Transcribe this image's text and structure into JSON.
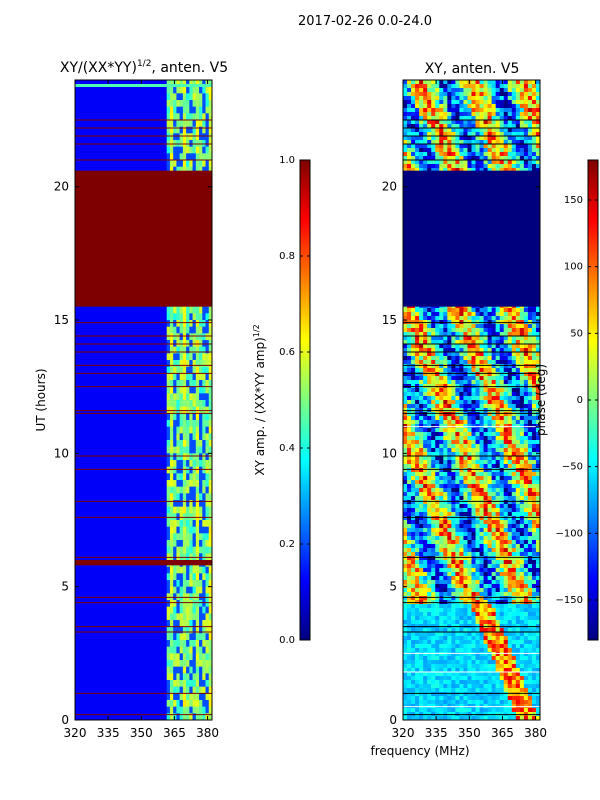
{
  "suptitle": "2017-02-26 0.0-24.0",
  "colors": {
    "jet": [
      "#00007f",
      "#0000ff",
      "#007fff",
      "#00ffff",
      "#7fff7f",
      "#ffff00",
      "#ff7f00",
      "#ff0000",
      "#7f0000"
    ],
    "black": "#000000",
    "white": "#ffffff"
  },
  "chart_data": [
    {
      "type": "heatmap",
      "title": "XY/(XX*YY)^{1/2}, anten. V5",
      "title_parts": [
        "XY/(XX*YY)",
        "1/2",
        ", anten. V5"
      ],
      "xlabel": "",
      "ylabel": "UT (hours)",
      "xlim": [
        320,
        382
      ],
      "ylim": [
        0,
        24
      ],
      "xticks": [
        "320",
        "335",
        "350",
        "365",
        "380"
      ],
      "xtick_values": [
        320,
        335,
        350,
        365,
        380
      ],
      "yticks": [
        "0",
        "5",
        "10",
        "15",
        "20"
      ],
      "ytick_values": [
        0,
        5,
        10,
        15,
        20
      ],
      "flagged_bands_hours": [
        [
          15.5,
          20.6
        ],
        [
          5.8,
          6.0
        ]
      ],
      "flagged_lines_hours": [
        0.2,
        1.0,
        3.3,
        3.5,
        4.4,
        4.6,
        6.1,
        7.6,
        8.2,
        9.4,
        9.9,
        11.5,
        11.6,
        12.5,
        13.0,
        13.3,
        13.8,
        14.1,
        14.4,
        14.9,
        21.0,
        21.6,
        21.9,
        22.2,
        22.5
      ],
      "active_channel_start_mhz": 361.5,
      "colorbar": {
        "label": "XY amp. / (XX*YY amp)^{1/2}",
        "label_parts": [
          "XY amp. / (XX*YY amp)",
          "1/2"
        ],
        "range": [
          0.0,
          1.0
        ],
        "ticks": [
          "0.0",
          "0.2",
          "0.4",
          "0.6",
          "0.8",
          "1.0"
        ],
        "tick_values": [
          0.0,
          0.2,
          0.4,
          0.6,
          0.8,
          1.0
        ]
      }
    },
    {
      "type": "heatmap",
      "title": "XY, anten. V5",
      "xlabel": "frequency (MHz)",
      "ylabel": "",
      "xlim": [
        320,
        382
      ],
      "ylim": [
        0,
        24
      ],
      "xticks": [
        "320",
        "335",
        "350",
        "365",
        "380"
      ],
      "xtick_values": [
        320,
        335,
        350,
        365,
        380
      ],
      "yticks": [
        "0",
        "5",
        "10",
        "15",
        "20"
      ],
      "ytick_values": [
        0,
        5,
        10,
        15,
        20
      ],
      "flagged_band_hours": [
        15.5,
        20.6
      ],
      "colorbar": {
        "label": "phase (deg)",
        "range": [
          -180,
          180
        ],
        "ticks": [
          "−150",
          "−100",
          "−50",
          "0",
          "50",
          "100",
          "150"
        ],
        "tick_values": [
          -150,
          -100,
          -50,
          0,
          50,
          100,
          150
        ]
      }
    }
  ]
}
